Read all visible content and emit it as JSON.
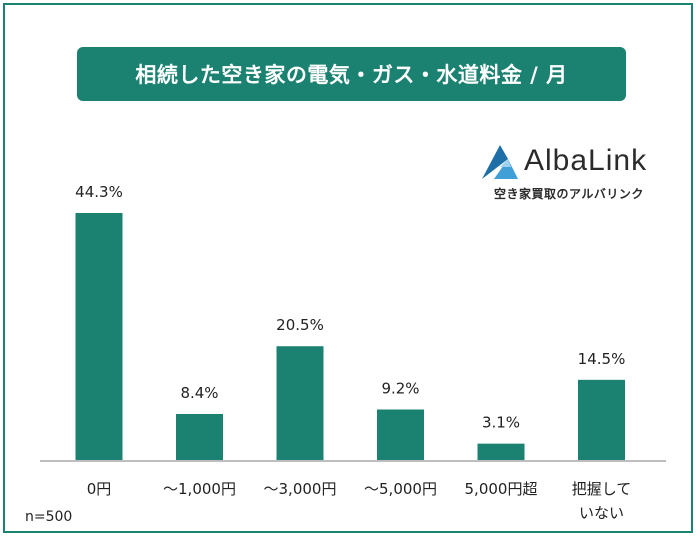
{
  "title": "相続した空き家の電気・ガス・水道料金 / 月",
  "logo": {
    "name": "AlbaLink",
    "tagline": "空き家買取のアルバリンク",
    "icon": "alba-link-logo-mark"
  },
  "sample_size": "n=500",
  "colors": {
    "accent": "#1b8170",
    "bar": "#1b8170",
    "text": "#222222",
    "axis": "#bdbdbd"
  },
  "chart_data": {
    "type": "bar",
    "title": "相続した空き家の電気・ガス・水道料金 / 月",
    "categories": [
      "0円",
      "〜1,000円",
      "〜3,000円",
      "〜5,000円",
      "5,000円超",
      "把握していない"
    ],
    "values": [
      44.3,
      8.4,
      20.5,
      9.2,
      3.1,
      14.5
    ],
    "value_labels": [
      "44.3%",
      "8.4%",
      "20.5%",
      "9.2%",
      "3.1%",
      "14.5%"
    ],
    "unit": "%",
    "xlabel": "",
    "ylabel": "",
    "ylim": [
      0,
      44.3
    ],
    "grid": false,
    "legend": "none"
  }
}
